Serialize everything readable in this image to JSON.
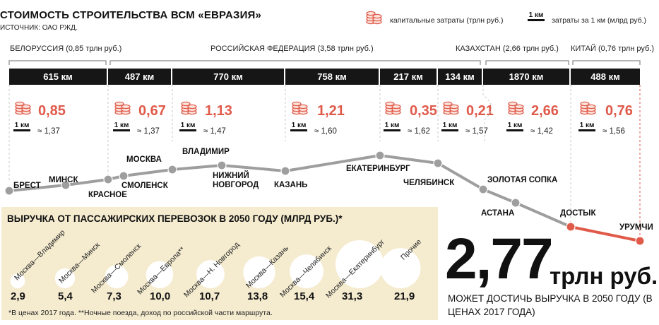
{
  "header": {
    "title": "СТОИМОСТЬ СТРОИТЕЛЬСТВА ВСМ «ЕВРАЗИЯ»",
    "source": "ИСТОЧНИК: ОАО РЖД."
  },
  "legend": {
    "capital_label": "капитальные затраты (трлн руб.)",
    "km_badge": "1 км",
    "per_km_label": "затраты за 1 км (млрд руб.)",
    "capital_icon": "coin-stack-icon"
  },
  "regions": [
    "БЕЛОРУССИЯ (0,85 трлн руб.)",
    "РОССИЙСКАЯ ФЕДЕРАЦИЯ (3,58 трлн руб.)",
    "КАЗАХСТАН (2,66 трлн руб.)",
    "КИТАЙ (0,76 трлн руб.)"
  ],
  "colors": {
    "accent": "#e05a4a",
    "dark": "#161616",
    "route": "#9e9e9e",
    "panel": "#f5ecd0"
  },
  "chart_data": [
    {
      "type": "table",
      "segments": [
        {
          "length": "615 км",
          "capital": "0,85",
          "per_km": "≈ 1,37"
        },
        {
          "length": "487 км",
          "capital": "0,67",
          "per_km": "≈ 1,37"
        },
        {
          "length": "770 км",
          "capital": "1,13",
          "per_km": "≈ 1,47"
        },
        {
          "length": "758 км",
          "capital": "1,21",
          "per_km": "≈ 1,60"
        },
        {
          "length": "217 км",
          "capital": "0,35",
          "per_km": "≈ 1,62"
        },
        {
          "length": "134 км",
          "capital": "0,21",
          "per_km": "≈ 1,57"
        },
        {
          "length": "1870 км",
          "capital": "2,66",
          "per_km": "≈ 1,42"
        },
        {
          "length": "488 км",
          "capital": "0,76",
          "per_km": "≈ 1,56"
        }
      ],
      "stations": [
        "БРЕСТ",
        "МИНСК",
        "КРАСНОЕ",
        "СМОЛЕНСК",
        "МОСКВА",
        "ВЛАДИМИР",
        "НИЖНИЙ НОВГОРОД",
        "КАЗАНЬ",
        "ЕКАТЕРИНБУРГ",
        "ЧЕЛЯБИНСК",
        "ЗОЛОТАЯ СОПКА",
        "АСТАНА",
        "ДОСТЫК",
        "УРУМЧИ"
      ]
    },
    {
      "type": "bubble",
      "title": "ВЫРУЧКА ОТ ПАССАЖИРСКИХ ПЕРЕВОЗОК В 2050  ГОДУ (МЛРД РУБ.)*",
      "categories": [
        "Москва—Владимир",
        "Москва—Минск",
        "Москва—Смоленск",
        "Москва—Европа**",
        "Москва—Н. Новгород",
        "Москва—Казань",
        "Москва—Челябинск",
        "Москва—Екатеринбург",
        "Прочие"
      ],
      "values": [
        2.9,
        5.4,
        7.3,
        10.0,
        10.7,
        13.8,
        15.4,
        31.3,
        21.9
      ],
      "value_labels": [
        "2,9",
        "5,4",
        "7,3",
        "10,0",
        "10,7",
        "13,8",
        "15,4",
        "31,3",
        "21,9"
      ]
    }
  ],
  "footnote": "*В ценах 2017 года. **Ночные поезда, доход по российской части маршрута.",
  "total": {
    "value": "2,77",
    "unit": "трлн руб.",
    "description": "МОЖЕТ ДОСТИЧЬ ВЫРУЧКА В 2050 ГОДУ (В ЦЕНАХ 2017 ГОДА)"
  }
}
